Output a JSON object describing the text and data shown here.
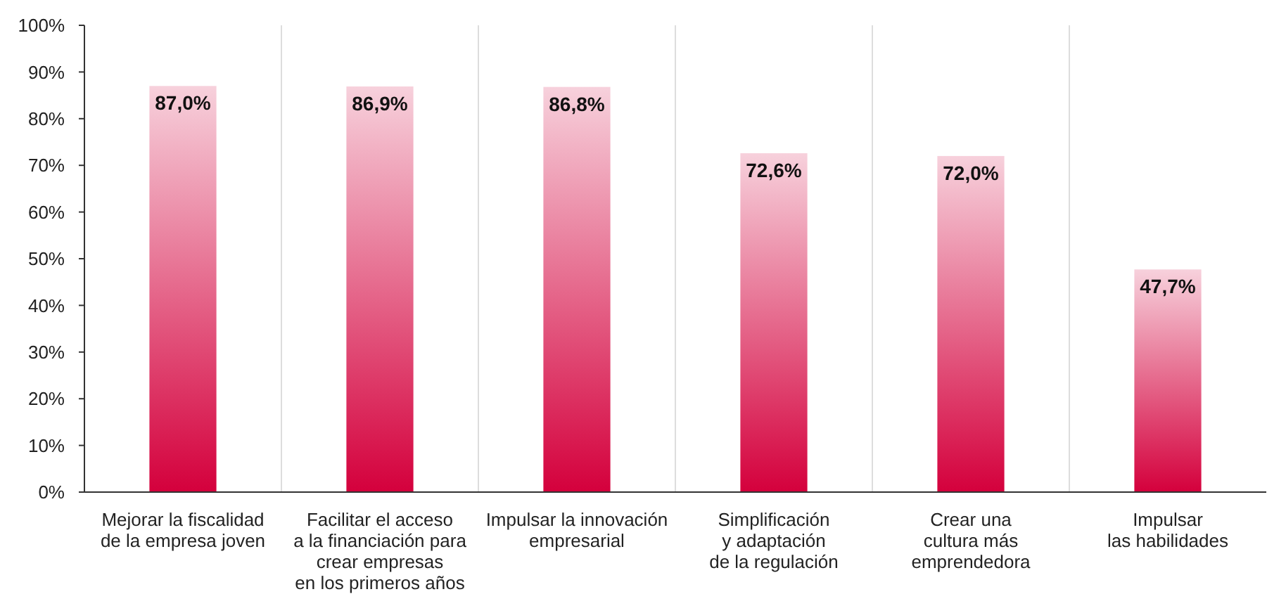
{
  "chart_data": {
    "type": "bar",
    "categories": [
      "Mejorar la fiscalidad\nde la empresa joven",
      "Facilitar el acceso\na la financiación para\ncrear empresas\nen los primeros años",
      "Impulsar la innovación\nempresarial",
      "Simplificación\ny adaptación\nde la regulación",
      "Crear una\ncultura más\nemprendedora",
      "Impulsar\nlas habilidades"
    ],
    "values": [
      87.0,
      86.9,
      86.8,
      72.6,
      72.0,
      47.7
    ],
    "value_labels": [
      "87,0%",
      "86,9%",
      "86,8%",
      "72,6%",
      "72,0%",
      "47,7%"
    ],
    "color": "#d4003c",
    "ylim": [
      0,
      100
    ],
    "yticks": [
      {
        "value": 0,
        "label": "0%"
      },
      {
        "value": 10,
        "label": "10%"
      },
      {
        "value": 20,
        "label": "20%"
      },
      {
        "value": 30,
        "label": "30%"
      },
      {
        "value": 40,
        "label": "40%"
      },
      {
        "value": 50,
        "label": "50%"
      },
      {
        "value": 60,
        "label": "60%"
      },
      {
        "value": 70,
        "label": "70%"
      },
      {
        "value": 80,
        "label": "80%"
      },
      {
        "value": 90,
        "label": "90%"
      },
      {
        "value": 100,
        "label": "100%"
      }
    ],
    "grid": "x"
  }
}
